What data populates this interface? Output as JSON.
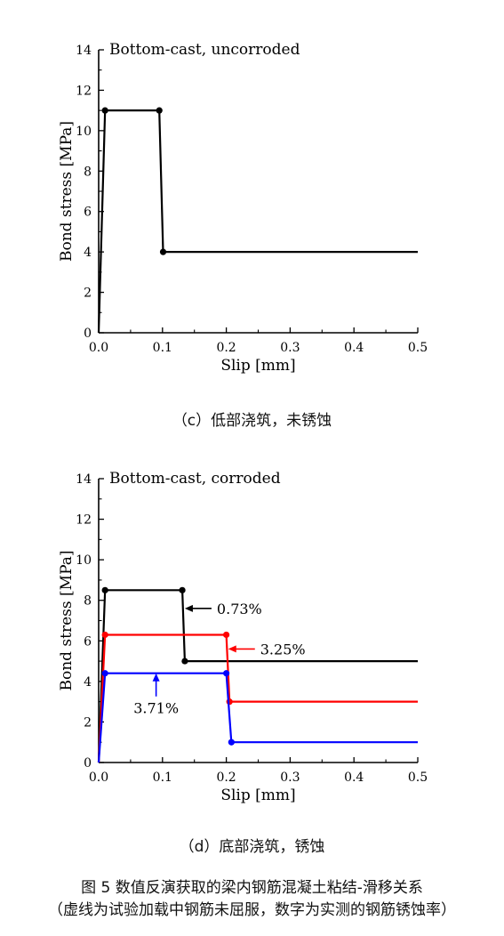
{
  "charts": [
    {
      "type": "line",
      "title": "Bottom-cast, uncorroded",
      "xlabel": "Slip [mm]",
      "ylabel": "Bond stress [MPa]",
      "xlim": [
        0,
        0.5
      ],
      "ylim": [
        0,
        14
      ],
      "xticks": [
        "0.0",
        "0.1",
        "0.2",
        "0.3",
        "0.4",
        "0.5"
      ],
      "yticks": [
        "0",
        "2",
        "4",
        "6",
        "8",
        "10",
        "12",
        "14"
      ],
      "grid": false,
      "legend": "none",
      "series": [
        {
          "color": "#000000",
          "x": [
            0,
            0.01,
            0.095,
            0.101,
            0.5
          ],
          "y": [
            0,
            11,
            11,
            4,
            4
          ],
          "markers": [
            [
              0.01,
              11
            ],
            [
              0.095,
              11
            ],
            [
              0.101,
              4
            ]
          ]
        }
      ],
      "annotations": []
    },
    {
      "type": "line",
      "title": "Bottom-cast, corroded",
      "xlabel": "Slip [mm]",
      "ylabel": "Bond stress [MPa]",
      "xlim": [
        0,
        0.5
      ],
      "ylim": [
        0,
        14
      ],
      "xticks": [
        "0.0",
        "0.1",
        "0.2",
        "0.3",
        "0.4",
        "0.5"
      ],
      "yticks": [
        "0",
        "2",
        "4",
        "6",
        "8",
        "10",
        "12",
        "14"
      ],
      "grid": false,
      "legend": "none",
      "series": [
        {
          "color": "#000000",
          "x": [
            0,
            0.01,
            0.131,
            0.135,
            0.5
          ],
          "y": [
            0,
            8.5,
            8.5,
            5,
            5
          ],
          "markers": [
            [
              0.01,
              8.5
            ],
            [
              0.131,
              8.5
            ],
            [
              0.135,
              5
            ]
          ]
        },
        {
          "color": "#ff0000",
          "x": [
            0,
            0.01,
            0.2,
            0.205,
            0.5
          ],
          "y": [
            0,
            6.3,
            6.3,
            3,
            3
          ],
          "markers": [
            [
              0.01,
              6.3
            ],
            [
              0.2,
              6.3
            ],
            [
              0.205,
              3
            ]
          ]
        },
        {
          "color": "#0000ff",
          "x": [
            0,
            0.01,
            0.2,
            0.208,
            0.5
          ],
          "y": [
            0,
            4.4,
            4.4,
            1,
            1
          ],
          "markers": [
            [
              0.01,
              4.4
            ],
            [
              0.2,
              4.4
            ],
            [
              0.208,
              1
            ]
          ]
        }
      ],
      "annotations": [
        {
          "text": "0.73%",
          "color": "#000000",
          "x": 0.135,
          "y": 7.6,
          "text_side": "right"
        },
        {
          "text": "3.25%",
          "color": "#ff0000",
          "x": 0.203,
          "y": 5.6,
          "text_side": "right"
        },
        {
          "text": "3.71%",
          "color": "#0000ff",
          "x": 0.09,
          "y": 4.4,
          "text_side": "below"
        }
      ]
    }
  ],
  "captions": {
    "c": "（c）低部浇筑，未锈蚀",
    "d": "（d）底部浇筑，锈蚀",
    "figure_title": "图 5  数值反演获取的梁内钢筋混凝土粘结-滑移关系",
    "figure_note": "（虚线为试验加载中钢筋未屈服，数字为实测的钢筋锈蚀率）"
  }
}
